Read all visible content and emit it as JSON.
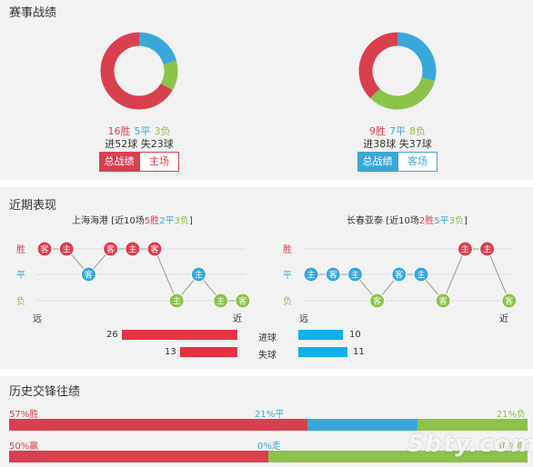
{
  "sections": {
    "record_title": "赛事战绩",
    "recent_title": "近期表现",
    "history_title": "历史交锋往绩"
  },
  "colors": {
    "win": "#d9404f",
    "draw": "#3aa7d9",
    "loss": "#8bc34a"
  },
  "left_team": {
    "wins": "16胜",
    "draws": "5平",
    "losses": "3负",
    "win_count": 16,
    "draw_count": 5,
    "loss_count": 3,
    "goals_for": "进52球",
    "goals_against": "失23球",
    "tab_active": "总战绩",
    "tab_inactive": "主场"
  },
  "right_team": {
    "wins": "9胜",
    "draws": "7平",
    "losses": "8负",
    "win_count": 9,
    "draw_count": 7,
    "loss_count": 8,
    "goals_for": "进38球",
    "goals_against": "失37球",
    "tab_active": "总战绩",
    "tab_inactive": "客场"
  },
  "recent": {
    "axis": {
      "win": "胜",
      "draw": "平",
      "loss": "负",
      "far": "远",
      "near": "近"
    },
    "left": {
      "team": "上海海港",
      "summary_pre": "[近10场",
      "w": "5胜",
      "d": "2平",
      "l": "3负",
      "summary_post": "]",
      "games": [
        {
          "result": "W",
          "venue": "客"
        },
        {
          "result": "W",
          "venue": "主"
        },
        {
          "result": "D",
          "venue": "客"
        },
        {
          "result": "W",
          "venue": "客"
        },
        {
          "result": "W",
          "venue": "主"
        },
        {
          "result": "W",
          "venue": "客"
        },
        {
          "result": "L",
          "venue": "主"
        },
        {
          "result": "D",
          "venue": "主"
        },
        {
          "result": "L",
          "venue": "主"
        },
        {
          "result": "L",
          "venue": "客"
        }
      ]
    },
    "right": {
      "team": "长春亚泰",
      "summary_pre": "[近10场",
      "w": "2胜",
      "d": "5平",
      "l": "3负",
      "summary_post": "]",
      "games": [
        {
          "result": "D",
          "venue": "主"
        },
        {
          "result": "D",
          "venue": "客"
        },
        {
          "result": "D",
          "venue": "主"
        },
        {
          "result": "L",
          "venue": "客"
        },
        {
          "result": "D",
          "venue": "客"
        },
        {
          "result": "D",
          "venue": "主"
        },
        {
          "result": "L",
          "venue": "客"
        },
        {
          "result": "W",
          "venue": "主"
        },
        {
          "result": "W",
          "venue": "主"
        },
        {
          "result": "L",
          "venue": "客"
        }
      ]
    },
    "stats": {
      "goals_for_label": "进球",
      "goals_against_label": "失球",
      "left_for": "26",
      "left_against": "13",
      "right_for": "10",
      "right_against": "11",
      "left_for_value": 26,
      "left_against_value": 13,
      "right_for_value": 10,
      "right_against_value": 11
    }
  },
  "history": {
    "row1": {
      "left": "57%胜",
      "mid": "21%平",
      "right": "21%负",
      "p1": 57,
      "p2": 21,
      "p3": 21
    },
    "row2": {
      "left": "50%赢",
      "mid": "0%走",
      "right": "50%输",
      "p1": 50,
      "p2": 0,
      "p3": 50
    },
    "watermark": "5bty.com"
  }
}
